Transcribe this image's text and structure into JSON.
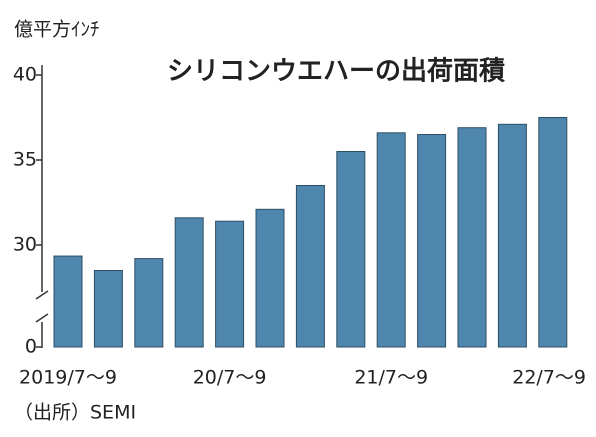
{
  "chart_data": {
    "type": "bar",
    "title": "シリコンウエハーの出荷面積",
    "y_axis_label": "億平方ｲﾝﾁ",
    "source": "（出所）SEMI",
    "categories": [
      "2019/7～9",
      null,
      null,
      null,
      "20/7～9",
      null,
      null,
      null,
      "21/7～9",
      null,
      null,
      null,
      "22/7～9"
    ],
    "values": [
      29.35,
      28.5,
      29.2,
      31.6,
      31.4,
      32.1,
      33.5,
      35.5,
      36.6,
      36.5,
      36.9,
      37.1,
      37.5
    ],
    "color": "#4f86ad",
    "ylim": [
      0,
      40
    ],
    "yticks": [
      0,
      30,
      35,
      40
    ],
    "axis_break": true
  }
}
